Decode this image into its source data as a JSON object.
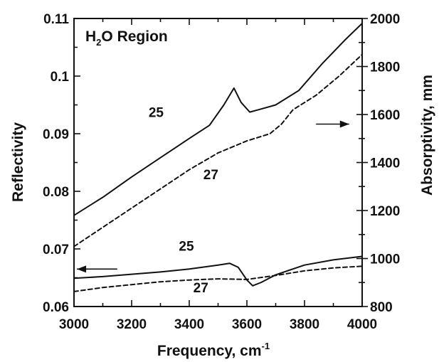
{
  "chart_data": {
    "type": "line",
    "title": "H2O Region",
    "title_parts": {
      "main": "H",
      "sub": "2",
      "rest": "O  Region"
    },
    "xlabel": "Frequency,  cm",
    "xlabel_sup": "-1",
    "ylabel_left": "Reflectivity",
    "ylabel_right": "Absorptivity,  mm",
    "xlim": [
      3000,
      4000
    ],
    "ylim_left": [
      0.06,
      0.11
    ],
    "ylim_right": [
      800,
      2000
    ],
    "x_ticks": [
      3000,
      3200,
      3400,
      3600,
      3800,
      4000
    ],
    "x_tick_labels": [
      "3000",
      "3200",
      "3400",
      "3600",
      "3800",
      "4000"
    ],
    "y_left_ticks": [
      0.06,
      0.07,
      0.08,
      0.09,
      0.1,
      0.11
    ],
    "y_left_tick_labels": [
      "0.06",
      "0.07",
      "0.08",
      "0.09",
      "0.1",
      "0.11"
    ],
    "y_right_ticks": [
      800,
      1000,
      1200,
      1400,
      1600,
      1800,
      2000
    ],
    "y_right_tick_labels": [
      "800",
      "1000",
      "1200",
      "1400",
      "1600",
      "1800",
      "2000"
    ],
    "grid": false,
    "series": [
      {
        "axis": "right",
        "style": "solid",
        "x": [
          3000,
          3100,
          3200,
          3300,
          3400,
          3470,
          3520,
          3555,
          3580,
          3610,
          3640,
          3700,
          3780,
          3860,
          3940,
          4000
        ],
        "y": [
          1180,
          1255,
          1340,
          1420,
          1500,
          1555,
          1640,
          1710,
          1650,
          1610,
          1620,
          1640,
          1700,
          1810,
          1910,
          1980
        ]
      },
      {
        "axis": "right",
        "style": "dashed",
        "x": [
          3000,
          3100,
          3200,
          3300,
          3400,
          3500,
          3600,
          3680,
          3720,
          3760,
          3840,
          3920,
          4000
        ],
        "y": [
          1050,
          1130,
          1210,
          1290,
          1370,
          1440,
          1490,
          1520,
          1560,
          1620,
          1680,
          1760,
          1850
        ]
      },
      {
        "axis": "left",
        "style": "solid",
        "x": [
          3000,
          3100,
          3200,
          3300,
          3400,
          3500,
          3540,
          3570,
          3600,
          3620,
          3650,
          3700,
          3800,
          3900,
          4000
        ],
        "y": [
          0.0649,
          0.0652,
          0.0656,
          0.066,
          0.0665,
          0.0672,
          0.0675,
          0.0668,
          0.0646,
          0.0636,
          0.0642,
          0.0655,
          0.0672,
          0.0681,
          0.0687
        ]
      },
      {
        "axis": "left",
        "style": "dashed",
        "x": [
          3000,
          3100,
          3200,
          3300,
          3400,
          3500,
          3600,
          3700,
          3800,
          3900,
          4000
        ],
        "y": [
          0.0626,
          0.0633,
          0.0638,
          0.0643,
          0.0646,
          0.0648,
          0.0647,
          0.0654,
          0.0662,
          0.0667,
          0.067
        ]
      }
    ],
    "annotations": [
      {
        "text": "25",
        "x": 3285,
        "y_right": 1590
      },
      {
        "text": "27",
        "x": 3475,
        "y_right": 1330
      },
      {
        "text": "25",
        "x": 3390,
        "y_left": 0.0697
      },
      {
        "text": "27",
        "x": 3440,
        "y_left": 0.0625
      }
    ],
    "arrows": [
      {
        "direction": "right",
        "axis": "right",
        "x_from": 3840,
        "x_to": 3955,
        "y": 1560
      },
      {
        "direction": "left",
        "axis": "left",
        "x_from": 3150,
        "x_to": 3010,
        "y": 0.0665
      }
    ]
  }
}
